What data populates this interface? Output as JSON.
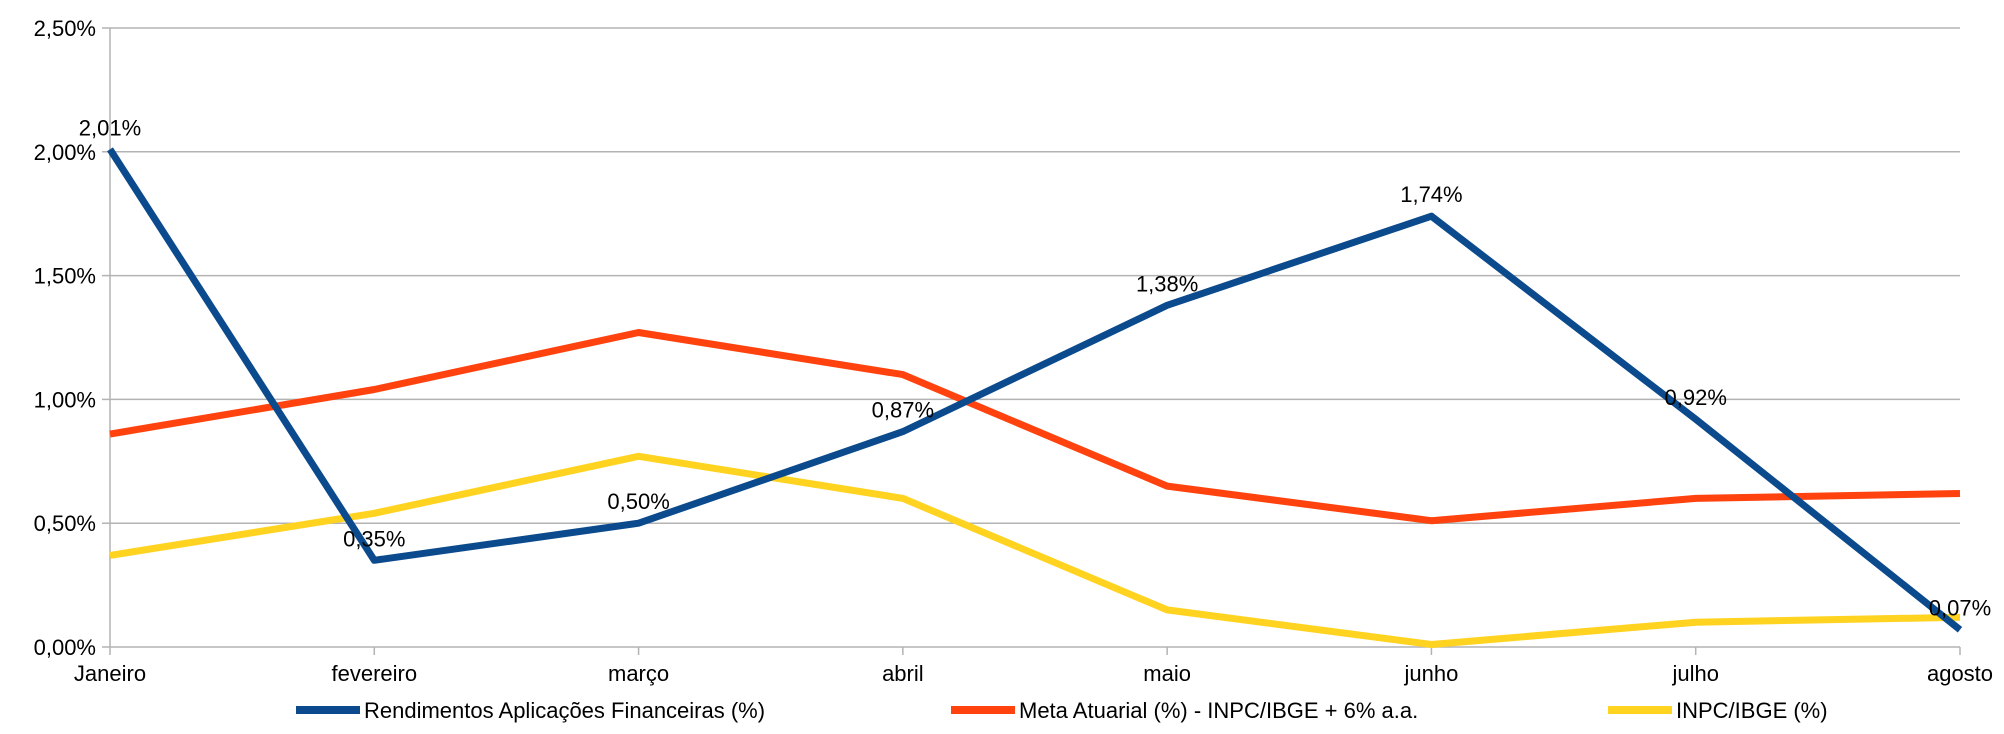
{
  "chart_data": {
    "type": "line",
    "categories": [
      "Janeiro",
      "fevereiro",
      "março",
      "abril",
      "maio",
      "junho",
      "julho",
      "agosto"
    ],
    "y_ticks": [
      "0,00%",
      "0,50%",
      "1,00%",
      "1,50%",
      "2,00%",
      "2,50%"
    ],
    "ylim": [
      0,
      2.5
    ],
    "grid": true,
    "legend_position": "bottom",
    "series": [
      {
        "name": "Rendimentos Aplicações Financeiras (%)",
        "color": "#0b4a8c",
        "values": [
          2.01,
          0.35,
          0.5,
          0.87,
          1.38,
          1.74,
          0.92,
          0.07
        ],
        "data_labels": [
          "2,01%",
          "0,35%",
          "0,50%",
          "0,87%",
          "1,38%",
          "1,74%",
          "0,92%",
          "0,07%"
        ]
      },
      {
        "name": "Meta Atuarial (%) - INPC/IBGE + 6% a.a.",
        "color": "#ff420e",
        "values": [
          0.86,
          1.04,
          1.27,
          1.1,
          0.65,
          0.51,
          0.6,
          0.62
        ]
      },
      {
        "name": "INPC/IBGE (%)",
        "color": "#ffd320",
        "values": [
          0.37,
          0.54,
          0.77,
          0.6,
          0.15,
          0.01,
          0.1,
          0.12
        ]
      }
    ]
  }
}
